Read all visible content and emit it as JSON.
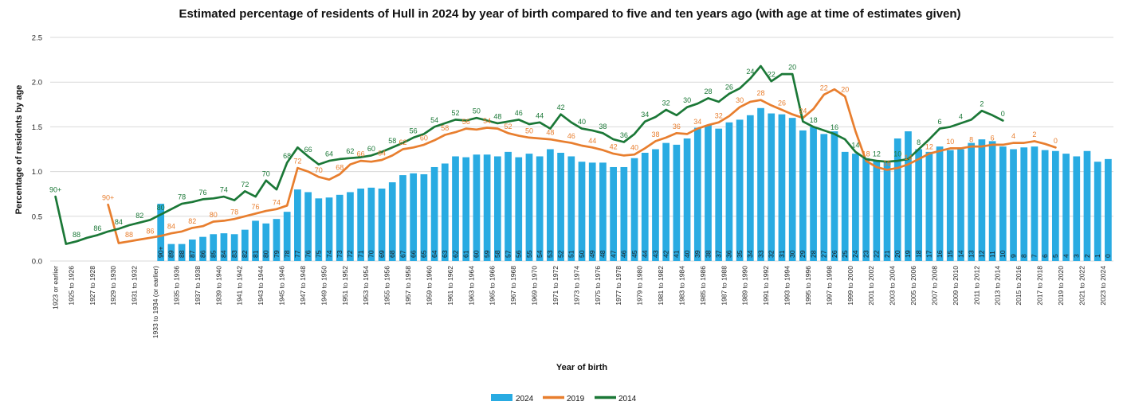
{
  "title": "Estimated percentage of residents of Hull in 2024 by year of birth compared to five and ten years ago (with age at time of estimates given)",
  "y_axis": {
    "title": "Percentage of residents by age",
    "ticks": [
      "0.0",
      "0.5",
      "1.0",
      "1.5",
      "2.0",
      "2.5"
    ],
    "min": 0,
    "max": 2.5
  },
  "x_axis": {
    "title": "Year of birth",
    "categories": [
      "1923 or earlier",
      "1925 to 1926",
      "1927 to 1928",
      "1929 to 1930",
      "1931 to 1932",
      "1933 to 1934 (or earlier)",
      "1935 to 1936",
      "1937 to 1938",
      "1939 to 1940",
      "1941 to 1942",
      "1943 to 1944",
      "1945 to 1946",
      "1947 to 1948",
      "1949 to 1950",
      "1951 to 1952",
      "1953 to 1954",
      "1955 to 1956",
      "1957 to 1958",
      "1959 to 1960",
      "1961 to 1962",
      "1963 to 1964",
      "1965 to 1966",
      "1967 to 1968",
      "1969 to 1970",
      "1971 to 1972",
      "1973 to 1974",
      "1975 to 1976",
      "1977 to 1978",
      "1979 to 1980",
      "1981 to 1982",
      "1983 to 1984",
      "1985 to 1986",
      "1987 to 1988",
      "1989 to 1990",
      "1991 to 1992",
      "1993 to 1994",
      "1995 to 1996",
      "1997 to 1998",
      "1999 to 2000",
      "2001 to 2002",
      "2003 to 2004",
      "2005 to 2006",
      "2007 to 2008",
      "2009 to 2010",
      "2011 to 2012",
      "2013 to 2014",
      "2015 to 2016",
      "2017 to 2018",
      "2019 to 2020",
      "2021 to 2022",
      "2023 to 2024"
    ]
  },
  "legend": {
    "items": [
      {
        "label": "2024",
        "type": "bar",
        "color": "#29ABE2"
      },
      {
        "label": "2019",
        "type": "line",
        "color": "#E87E2E"
      },
      {
        "label": "2014",
        "type": "line",
        "color": "#1B7837"
      }
    ]
  },
  "colors": {
    "bars_2024": "#29ABE2",
    "line_2019": "#E87E2E",
    "line_2014": "#1B7837",
    "gridline": "#D9D9D9",
    "text": "#262626",
    "title": "#111111"
  },
  "chart_data": {
    "type": "bar",
    "subtype": "combo-bar-and-lines",
    "title": "Estimated percentage of residents of Hull in 2024 by year of birth compared to five and ten years ago (with age at time of estimates given)",
    "xlabel": "Year of birth",
    "ylabel": "Percentage of residents by age",
    "ylim": [
      0,
      2.5
    ],
    "grid": true,
    "legend_position": "bottom",
    "slots": 101,
    "ages": [
      "90+",
      "89",
      "88",
      "87",
      "86",
      "85",
      "84",
      "83",
      "82",
      "81",
      "80",
      "79",
      "78",
      "77",
      "76",
      "75",
      "74",
      "73",
      "72",
      "71",
      "70",
      "69",
      "68",
      "67",
      "66",
      "65",
      "64",
      "63",
      "62",
      "61",
      "60",
      "59",
      "58",
      "57",
      "56",
      "55",
      "54",
      "53",
      "52",
      "51",
      "50",
      "49",
      "48",
      "47",
      "46",
      "45",
      "44",
      "43",
      "42",
      "41",
      "40",
      "39",
      "38",
      "37",
      "36",
      "35",
      "34",
      "33",
      "32",
      "31",
      "30",
      "29",
      "28",
      "27",
      "26",
      "25",
      "24",
      "23",
      "22",
      "21",
      "20",
      "19",
      "18",
      "17",
      "16",
      "15",
      "14",
      "13",
      "12",
      "11",
      "10",
      "9",
      "8",
      "7",
      "6",
      "5",
      "4",
      "3",
      "2",
      "1",
      "0"
    ],
    "series": [
      {
        "name": "2024",
        "type": "bar",
        "color": "#29ABE2",
        "start_slot": 10,
        "first_age_label": "90+",
        "values": [
          0.64,
          0.19,
          0.19,
          0.24,
          0.27,
          0.3,
          0.31,
          0.3,
          0.35,
          0.45,
          0.42,
          0.47,
          0.55,
          0.8,
          0.77,
          0.7,
          0.71,
          0.74,
          0.77,
          0.81,
          0.82,
          0.81,
          0.88,
          0.96,
          0.98,
          0.97,
          1.05,
          1.09,
          1.17,
          1.16,
          1.19,
          1.19,
          1.17,
          1.22,
          1.16,
          1.2,
          1.17,
          1.25,
          1.21,
          1.17,
          1.11,
          1.1,
          1.1,
          1.05,
          1.05,
          1.15,
          1.21,
          1.25,
          1.32,
          1.3,
          1.37,
          1.49,
          1.52,
          1.48,
          1.55,
          1.58,
          1.63,
          1.71,
          1.65,
          1.64,
          1.6,
          1.46,
          1.5,
          1.42,
          1.45,
          1.22,
          1.2,
          1.15,
          1.12,
          1.12,
          1.37,
          1.45,
          1.25,
          1.22,
          1.28,
          1.24,
          1.25,
          1.32,
          1.36,
          1.34,
          1.28,
          1.25,
          1.27,
          1.28,
          1.24,
          1.23,
          1.2,
          1.17,
          1.23,
          1.11,
          1.14
        ]
      },
      {
        "name": "2019",
        "type": "line",
        "color": "#E87E2E",
        "start_slot": 5,
        "first_age_label": "90+",
        "values": [
          0.63,
          0.2,
          0.22,
          0.24,
          0.26,
          0.28,
          0.31,
          0.33,
          0.37,
          0.39,
          0.44,
          0.45,
          0.47,
          0.5,
          0.53,
          0.56,
          0.58,
          0.62,
          1.04,
          1.0,
          0.94,
          0.91,
          0.97,
          1.08,
          1.12,
          1.11,
          1.13,
          1.18,
          1.25,
          1.27,
          1.3,
          1.35,
          1.41,
          1.44,
          1.48,
          1.47,
          1.49,
          1.48,
          1.43,
          1.4,
          1.38,
          1.37,
          1.36,
          1.34,
          1.32,
          1.29,
          1.27,
          1.24,
          1.2,
          1.18,
          1.19,
          1.26,
          1.34,
          1.38,
          1.43,
          1.42,
          1.48,
          1.52,
          1.55,
          1.62,
          1.72,
          1.78,
          1.8,
          1.74,
          1.69,
          1.64,
          1.6,
          1.7,
          1.86,
          1.92,
          1.84,
          1.45,
          1.12,
          1.05,
          1.02,
          1.04,
          1.08,
          1.14,
          1.2,
          1.23,
          1.26,
          1.26,
          1.28,
          1.28,
          1.3,
          1.3,
          1.32,
          1.32,
          1.34,
          1.31,
          1.27
        ]
      },
      {
        "name": "2014",
        "type": "line",
        "color": "#1B7837",
        "start_slot": 0,
        "first_age_label": "90+",
        "values": [
          0.72,
          0.19,
          0.22,
          0.26,
          0.29,
          0.33,
          0.36,
          0.4,
          0.43,
          0.46,
          0.52,
          0.58,
          0.64,
          0.66,
          0.69,
          0.7,
          0.72,
          0.68,
          0.78,
          0.72,
          0.9,
          0.8,
          1.1,
          1.27,
          1.17,
          1.08,
          1.12,
          1.14,
          1.15,
          1.16,
          1.18,
          1.22,
          1.27,
          1.32,
          1.38,
          1.42,
          1.5,
          1.54,
          1.58,
          1.57,
          1.6,
          1.57,
          1.54,
          1.56,
          1.58,
          1.53,
          1.55,
          1.48,
          1.64,
          1.55,
          1.48,
          1.46,
          1.43,
          1.36,
          1.33,
          1.42,
          1.56,
          1.61,
          1.69,
          1.63,
          1.72,
          1.76,
          1.82,
          1.78,
          1.87,
          1.93,
          2.04,
          2.18,
          2.01,
          2.09,
          2.09,
          1.56,
          1.5,
          1.46,
          1.42,
          1.36,
          1.22,
          1.14,
          1.12,
          1.11,
          1.12,
          1.14,
          1.25,
          1.36,
          1.48,
          1.5,
          1.54,
          1.58,
          1.68,
          1.63,
          1.57
        ]
      }
    ]
  }
}
